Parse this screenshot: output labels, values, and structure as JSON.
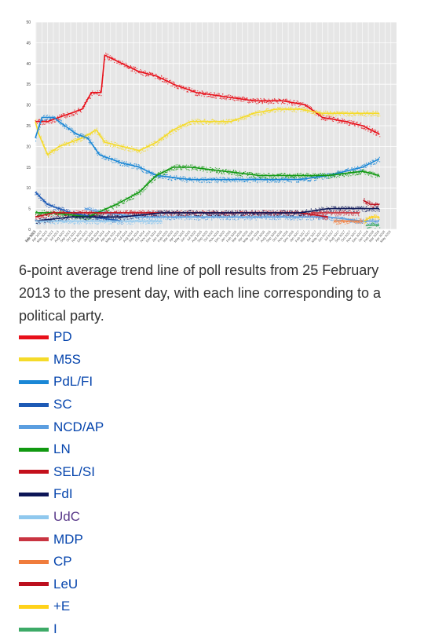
{
  "chart_data": {
    "type": "line",
    "title": "",
    "xlabel": "",
    "ylabel": "",
    "xlim": [
      "2013-02-25",
      "2018-05-31"
    ],
    "ylim": [
      0,
      50
    ],
    "y_ticks": [
      0,
      5,
      10,
      15,
      20,
      25,
      30,
      35,
      40,
      45,
      50
    ],
    "x_ticks": [
      "Feb 2013",
      "Mar 2013",
      "Apr 2013",
      "May 2013",
      "Jun 2013",
      "Jul 2013",
      "Aug 2013",
      "Sep 2013",
      "Oct 2013",
      "Nov 2013",
      "Dec 2013",
      "Jan 2014",
      "Feb 2014",
      "Mar 2014",
      "Apr 2014",
      "May 2014",
      "Jun 2014",
      "Jul 2014",
      "Aug 2014",
      "Sep 2014",
      "Oct 2014",
      "Nov 2014",
      "Dec 2014",
      "Jan 2015",
      "Feb 2015",
      "Mar 2015",
      "Apr 2015",
      "May 2015",
      "Jun 2015",
      "Jul 2015",
      "Aug 2015",
      "Sep 2015",
      "Oct 2015",
      "Nov 2015",
      "Dec 2015",
      "Jan 2016",
      "Feb 2016",
      "Mar 2016",
      "Apr 2016",
      "May 2016",
      "Jun 2016",
      "Jul 2016",
      "Aug 2016",
      "Sep 2016",
      "Oct 2016",
      "Nov 2016",
      "Dec 2016",
      "Jan 2017",
      "Feb 2017",
      "Mar 2017",
      "Apr 2017",
      "May 2017",
      "Jun 2017",
      "Jul 2017",
      "Aug 2017",
      "Sep 2017",
      "Oct 2017",
      "Nov 2017",
      "Dec 2017",
      "Jan 2018",
      "Feb 2018",
      "Mar 2018",
      "Apr 2018",
      "May 2018"
    ],
    "grid": true,
    "background": "#e6e6e6",
    "series": [
      {
        "name": "PD",
        "color": "#e8101a",
        "points": [
          [
            "2013-02-25",
            26
          ],
          [
            "2013-05-01",
            26
          ],
          [
            "2013-07-01",
            27
          ],
          [
            "2013-09-01",
            28
          ],
          [
            "2013-11-01",
            29
          ],
          [
            "2013-12-20",
            33
          ],
          [
            "2014-02-10",
            33
          ],
          [
            "2014-03-01",
            42
          ],
          [
            "2014-06-01",
            40
          ],
          [
            "2014-09-01",
            38
          ],
          [
            "2014-12-01",
            37
          ],
          [
            "2015-03-01",
            35
          ],
          [
            "2015-07-01",
            33
          ],
          [
            "2015-12-01",
            32
          ],
          [
            "2016-05-01",
            31
          ],
          [
            "2016-10-01",
            31
          ],
          [
            "2017-02-01",
            30
          ],
          [
            "2017-05-01",
            27
          ],
          [
            "2017-09-01",
            26
          ],
          [
            "2017-12-01",
            25
          ],
          [
            "2018-02-28",
            23
          ]
        ]
      },
      {
        "name": "M5S",
        "color": "#f5db2a",
        "points": [
          [
            "2013-02-25",
            26
          ],
          [
            "2013-03-15",
            23
          ],
          [
            "2013-05-01",
            18
          ],
          [
            "2013-07-01",
            20
          ],
          [
            "2013-09-01",
            21
          ],
          [
            "2013-11-01",
            22
          ],
          [
            "2014-01-15",
            24
          ],
          [
            "2014-03-01",
            21
          ],
          [
            "2014-06-01",
            20
          ],
          [
            "2014-09-01",
            19
          ],
          [
            "2014-12-01",
            21
          ],
          [
            "2015-03-01",
            24
          ],
          [
            "2015-06-01",
            26
          ],
          [
            "2015-09-01",
            26
          ],
          [
            "2016-01-01",
            26
          ],
          [
            "2016-05-01",
            28
          ],
          [
            "2016-09-01",
            29
          ],
          [
            "2017-01-01",
            29
          ],
          [
            "2017-05-01",
            28
          ],
          [
            "2017-09-01",
            28
          ],
          [
            "2017-12-01",
            28
          ],
          [
            "2018-02-28",
            28
          ]
        ]
      },
      {
        "name": "PdL/FI",
        "color": "#1a87d6",
        "points": [
          [
            "2013-02-25",
            22
          ],
          [
            "2013-04-01",
            27
          ],
          [
            "2013-06-01",
            27
          ],
          [
            "2013-08-01",
            25
          ],
          [
            "2013-10-01",
            23
          ],
          [
            "2013-12-01",
            22
          ],
          [
            "2014-02-01",
            18
          ],
          [
            "2014-04-01",
            17
          ],
          [
            "2014-06-01",
            16
          ],
          [
            "2014-09-01",
            15
          ],
          [
            "2014-12-01",
            13
          ],
          [
            "2015-06-01",
            12
          ],
          [
            "2016-01-01",
            12
          ],
          [
            "2016-06-01",
            12
          ],
          [
            "2017-01-01",
            12
          ],
          [
            "2017-06-01",
            13
          ],
          [
            "2017-12-01",
            15
          ],
          [
            "2018-02-28",
            17
          ]
        ]
      },
      {
        "name": "SC",
        "color": "#1d5ab5",
        "points": [
          [
            "2013-02-25",
            9
          ],
          [
            "2013-05-01",
            6
          ],
          [
            "2013-09-01",
            4
          ],
          [
            "2014-01-01",
            3
          ],
          [
            "2014-06-01",
            2
          ]
        ]
      },
      {
        "name": "NCD/AP",
        "color": "#5b9ee0",
        "points": [
          [
            "2013-11-15",
            5
          ],
          [
            "2014-03-01",
            4
          ],
          [
            "2014-09-01",
            3
          ],
          [
            "2015-06-01",
            3
          ],
          [
            "2016-06-01",
            3
          ],
          [
            "2017-06-01",
            3
          ],
          [
            "2017-12-01",
            2
          ],
          [
            "2018-02-28",
            2
          ]
        ]
      },
      {
        "name": "LN",
        "color": "#119911",
        "points": [
          [
            "2013-02-25",
            4
          ],
          [
            "2013-06-01",
            4
          ],
          [
            "2013-12-01",
            3
          ],
          [
            "2014-05-01",
            6
          ],
          [
            "2014-09-01",
            9
          ],
          [
            "2014-12-01",
            13
          ],
          [
            "2015-03-01",
            15
          ],
          [
            "2015-06-01",
            15
          ],
          [
            "2015-12-01",
            14
          ],
          [
            "2016-06-01",
            13
          ],
          [
            "2017-01-01",
            13
          ],
          [
            "2017-06-01",
            13
          ],
          [
            "2017-12-01",
            14
          ],
          [
            "2018-02-28",
            13
          ]
        ]
      },
      {
        "name": "SEL/SI",
        "color": "#c4101c",
        "points": [
          [
            "2013-02-25",
            3
          ],
          [
            "2013-06-01",
            4
          ],
          [
            "2014-01-01",
            4
          ],
          [
            "2014-06-01",
            4
          ],
          [
            "2015-01-01",
            4
          ],
          [
            "2016-01-01",
            4
          ],
          [
            "2017-01-01",
            4
          ],
          [
            "2017-06-01",
            3
          ]
        ]
      },
      {
        "name": "FdI",
        "color": "#0d1657",
        "points": [
          [
            "2013-02-25",
            2
          ],
          [
            "2013-09-01",
            3
          ],
          [
            "2014-06-01",
            3
          ],
          [
            "2015-01-01",
            4
          ],
          [
            "2015-06-01",
            4
          ],
          [
            "2016-01-01",
            4
          ],
          [
            "2016-06-01",
            4
          ],
          [
            "2017-01-01",
            4
          ],
          [
            "2017-06-01",
            5
          ],
          [
            "2017-12-01",
            5
          ],
          [
            "2018-02-28",
            5
          ]
        ]
      },
      {
        "name": "UdC",
        "color": "#8fc8ee",
        "points": [
          [
            "2013-02-25",
            2
          ],
          [
            "2013-09-01",
            2
          ],
          [
            "2014-06-01",
            2
          ],
          [
            "2015-01-01",
            2
          ]
        ]
      },
      {
        "name": "MDP",
        "color": "#c93441",
        "points": [
          [
            "2017-03-01",
            4
          ],
          [
            "2017-06-01",
            4
          ],
          [
            "2017-09-01",
            4
          ],
          [
            "2017-11-15",
            4
          ]
        ]
      },
      {
        "name": "CP",
        "color": "#f07c3c",
        "points": [
          [
            "2017-07-01",
            2
          ],
          [
            "2017-10-01",
            2
          ],
          [
            "2017-12-01",
            2
          ]
        ]
      },
      {
        "name": "LeU",
        "color": "#bc0f1e",
        "points": [
          [
            "2017-12-05",
            7
          ],
          [
            "2018-01-15",
            6
          ],
          [
            "2018-02-28",
            6
          ]
        ]
      },
      {
        "name": "+E",
        "color": "#ffd21a",
        "points": [
          [
            "2017-12-10",
            2
          ],
          [
            "2018-01-15",
            3
          ],
          [
            "2018-02-28",
            3
          ]
        ]
      },
      {
        "name": "I",
        "color": "#3daa67",
        "points": [
          [
            "2017-12-20",
            1
          ],
          [
            "2018-02-28",
            1
          ]
        ]
      }
    ]
  },
  "caption": "6-point average trend line of poll results from 25 February 2013 to the present day, with each line corresponding to a political party.",
  "legend": [
    {
      "label": "PD",
      "color": "#e8101a"
    },
    {
      "label": "M5S",
      "color": "#f5db2a"
    },
    {
      "label": "PdL/FI",
      "color": "#1a87d6"
    },
    {
      "label": "SC",
      "color": "#1d5ab5"
    },
    {
      "label": "NCD/AP",
      "color": "#5b9ee0"
    },
    {
      "label": "LN",
      "color": "#119911"
    },
    {
      "label": "SEL/SI",
      "color": "#c4101c"
    },
    {
      "label": "FdI",
      "color": "#0d1657"
    },
    {
      "label": "UdC",
      "color": "#8fc8ee"
    },
    {
      "label": "MDP",
      "color": "#c93441"
    },
    {
      "label": "CP",
      "color": "#f07c3c"
    },
    {
      "label": "LeU",
      "color": "#bc0f1e"
    },
    {
      "label": "+E",
      "color": "#ffd21a"
    },
    {
      "label": "I",
      "color": "#3daa67"
    }
  ]
}
